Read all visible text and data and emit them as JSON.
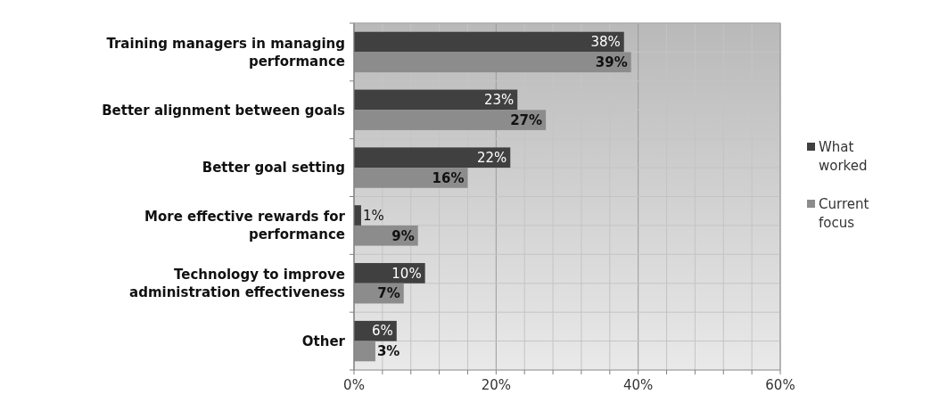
{
  "chart_data": {
    "type": "bar",
    "orientation": "horizontal",
    "categories": [
      "Training managers in managing performance",
      "Better alignment between goals",
      "Better goal setting",
      "More effective rewards for performance",
      "Technology to improve administration effectiveness",
      "Other"
    ],
    "series": [
      {
        "name": "What worked",
        "color": "#404040",
        "values": [
          38,
          23,
          22,
          1,
          10,
          6
        ],
        "value_labels": [
          "38%",
          "23%",
          "22%",
          "1%",
          "10%",
          "6%"
        ]
      },
      {
        "name": "Current focus",
        "color": "#8c8c8c",
        "values": [
          39,
          27,
          16,
          9,
          7,
          3
        ],
        "value_labels": [
          "39%",
          "27%",
          "16%",
          "9%",
          "7%",
          "3%"
        ]
      }
    ],
    "xlim": [
      0,
      60
    ],
    "xticks": [
      {
        "value": 0,
        "label": "0%"
      },
      {
        "value": 4,
        "label": null
      },
      {
        "value": 8,
        "label": null
      },
      {
        "value": 12,
        "label": null
      },
      {
        "value": 16,
        "label": null
      },
      {
        "value": 20,
        "label": "20%"
      },
      {
        "value": 24,
        "label": null
      },
      {
        "value": 28,
        "label": null
      },
      {
        "value": 32,
        "label": null
      },
      {
        "value": 36,
        "label": null
      },
      {
        "value": 40,
        "label": "40%"
      },
      {
        "value": 44,
        "label": null
      },
      {
        "value": 48,
        "label": null
      },
      {
        "value": 52,
        "label": null
      },
      {
        "value": 56,
        "label": null
      },
      {
        "value": 60,
        "label": "60%"
      }
    ],
    "grid": true,
    "legend": "right"
  }
}
